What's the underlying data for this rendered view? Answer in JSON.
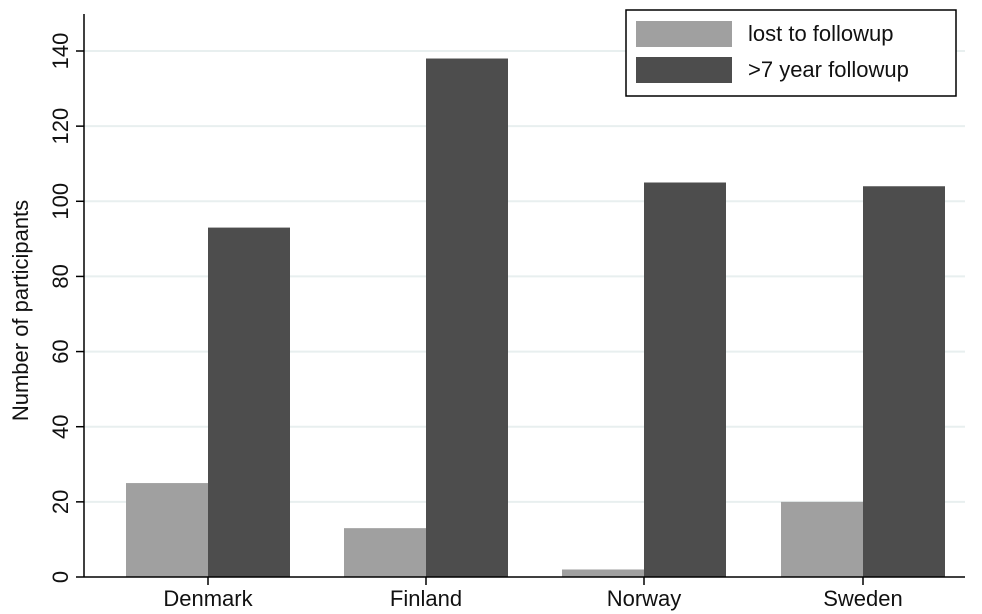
{
  "chart_data": {
    "type": "bar",
    "title": "",
    "xlabel": "",
    "ylabel": "Number of participants",
    "categories": [
      "Denmark",
      "Finland",
      "Norway",
      "Sweden"
    ],
    "series": [
      {
        "name": "lost to followup",
        "values": [
          25,
          13,
          2,
          20
        ],
        "color": "#a0a0a0"
      },
      {
        "name": ">7 year followup",
        "values": [
          93,
          138,
          105,
          104
        ],
        "color": "#4d4d4d"
      }
    ],
    "ylim": [
      0,
      140
    ],
    "yticks": [
      0,
      20,
      40,
      60,
      80,
      100,
      120,
      140
    ],
    "grid": true,
    "gridColor": "#e8efef",
    "legend_position": "top-right"
  }
}
